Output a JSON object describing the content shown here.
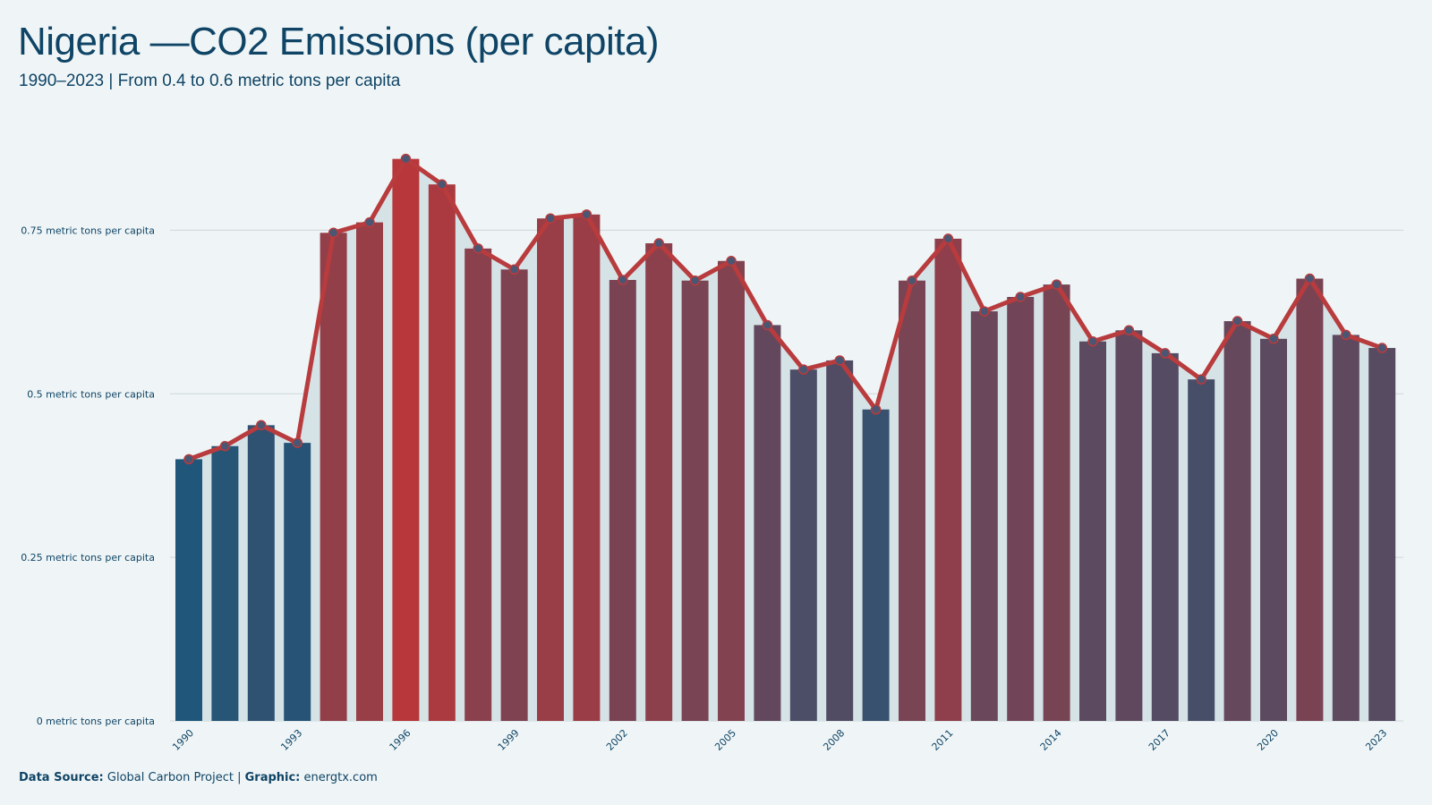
{
  "header": {
    "title": "Nigeria —CO2 Emissions (per capita)",
    "subtitle": "1990–2023 | From 0.4 to 0.6 metric tons per capita"
  },
  "footer": {
    "source_label": "Data Source:",
    "source_value": "Global Carbon Project |",
    "graphic_label": "Graphic:",
    "graphic_value": "energtx.com"
  },
  "colors": {
    "background": "#eff5f6",
    "title": "#0f4466",
    "line": "#b83b3d",
    "bar_low": "#1f5679",
    "bar_high": "#b7373a",
    "area_fill": "#d5e3e7",
    "grid": "#cdd6da",
    "marker": "#4b5673"
  },
  "chart_data": {
    "type": "bar",
    "overlay": "line",
    "x": [
      1990,
      1991,
      1992,
      1993,
      1994,
      1995,
      1996,
      1997,
      1998,
      1999,
      2000,
      2001,
      2002,
      2003,
      2004,
      2005,
      2006,
      2007,
      2008,
      2009,
      2010,
      2011,
      2012,
      2013,
      2014,
      2015,
      2016,
      2017,
      2018,
      2019,
      2020,
      2021,
      2022,
      2023
    ],
    "x_tick_labels": [
      "1990",
      "1993",
      "1996",
      "1999",
      "2002",
      "2005",
      "2008",
      "2011",
      "2014",
      "2017",
      "2020",
      "2023"
    ],
    "values": [
      0.4,
      0.42,
      0.452,
      0.425,
      0.746,
      0.762,
      0.859,
      0.82,
      0.722,
      0.69,
      0.768,
      0.774,
      0.674,
      0.73,
      0.673,
      0.703,
      0.605,
      0.537,
      0.551,
      0.476,
      0.673,
      0.737,
      0.626,
      0.648,
      0.667,
      0.58,
      0.597,
      0.562,
      0.522,
      0.611,
      0.584,
      0.676,
      0.59,
      0.57
    ],
    "y_ticks": [
      0,
      0.25,
      0.5,
      0.75
    ],
    "y_tick_labels": [
      "0 metric tons per capita",
      "0.25 metric tons per capita",
      "0.5 metric tons per capita",
      "0.75 metric tons per capita"
    ],
    "ylim": [
      0,
      0.9
    ],
    "grid": true,
    "legend": "none"
  }
}
